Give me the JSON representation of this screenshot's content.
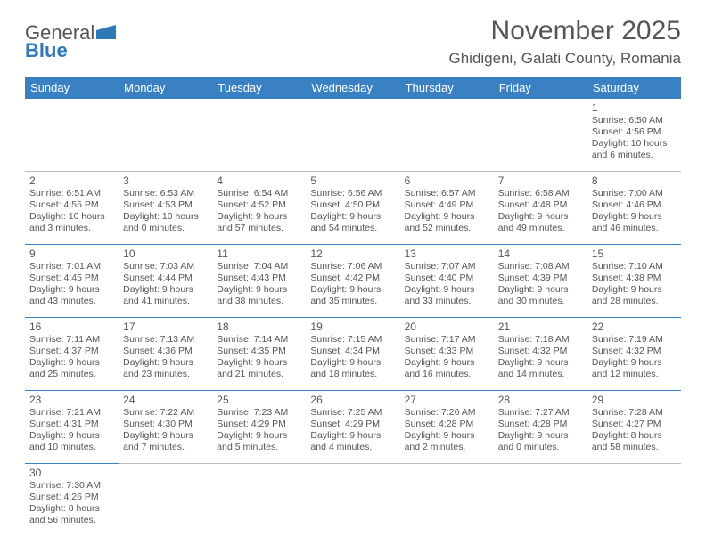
{
  "brand": {
    "part1": "General",
    "part2": "Blue"
  },
  "title": "November 2025",
  "location": "Ghidigeni, Galati County, Romania",
  "colors": {
    "header_bg": "#3a81c4",
    "header_text": "#ffffff",
    "text": "#555555",
    "rule": "#3a81c4",
    "background": "#ffffff"
  },
  "dayHeaders": [
    "Sunday",
    "Monday",
    "Tuesday",
    "Wednesday",
    "Thursday",
    "Friday",
    "Saturday"
  ],
  "weeks": [
    [
      null,
      null,
      null,
      null,
      null,
      null,
      {
        "n": "1",
        "sr": "Sunrise: 6:50 AM",
        "ss": "Sunset: 4:56 PM",
        "d1": "Daylight: 10 hours",
        "d2": "and 6 minutes."
      }
    ],
    [
      {
        "n": "2",
        "sr": "Sunrise: 6:51 AM",
        "ss": "Sunset: 4:55 PM",
        "d1": "Daylight: 10 hours",
        "d2": "and 3 minutes."
      },
      {
        "n": "3",
        "sr": "Sunrise: 6:53 AM",
        "ss": "Sunset: 4:53 PM",
        "d1": "Daylight: 10 hours",
        "d2": "and 0 minutes."
      },
      {
        "n": "4",
        "sr": "Sunrise: 6:54 AM",
        "ss": "Sunset: 4:52 PM",
        "d1": "Daylight: 9 hours",
        "d2": "and 57 minutes."
      },
      {
        "n": "5",
        "sr": "Sunrise: 6:56 AM",
        "ss": "Sunset: 4:50 PM",
        "d1": "Daylight: 9 hours",
        "d2": "and 54 minutes."
      },
      {
        "n": "6",
        "sr": "Sunrise: 6:57 AM",
        "ss": "Sunset: 4:49 PM",
        "d1": "Daylight: 9 hours",
        "d2": "and 52 minutes."
      },
      {
        "n": "7",
        "sr": "Sunrise: 6:58 AM",
        "ss": "Sunset: 4:48 PM",
        "d1": "Daylight: 9 hours",
        "d2": "and 49 minutes."
      },
      {
        "n": "8",
        "sr": "Sunrise: 7:00 AM",
        "ss": "Sunset: 4:46 PM",
        "d1": "Daylight: 9 hours",
        "d2": "and 46 minutes."
      }
    ],
    [
      {
        "n": "9",
        "sr": "Sunrise: 7:01 AM",
        "ss": "Sunset: 4:45 PM",
        "d1": "Daylight: 9 hours",
        "d2": "and 43 minutes."
      },
      {
        "n": "10",
        "sr": "Sunrise: 7:03 AM",
        "ss": "Sunset: 4:44 PM",
        "d1": "Daylight: 9 hours",
        "d2": "and 41 minutes."
      },
      {
        "n": "11",
        "sr": "Sunrise: 7:04 AM",
        "ss": "Sunset: 4:43 PM",
        "d1": "Daylight: 9 hours",
        "d2": "and 38 minutes."
      },
      {
        "n": "12",
        "sr": "Sunrise: 7:06 AM",
        "ss": "Sunset: 4:42 PM",
        "d1": "Daylight: 9 hours",
        "d2": "and 35 minutes."
      },
      {
        "n": "13",
        "sr": "Sunrise: 7:07 AM",
        "ss": "Sunset: 4:40 PM",
        "d1": "Daylight: 9 hours",
        "d2": "and 33 minutes."
      },
      {
        "n": "14",
        "sr": "Sunrise: 7:08 AM",
        "ss": "Sunset: 4:39 PM",
        "d1": "Daylight: 9 hours",
        "d2": "and 30 minutes."
      },
      {
        "n": "15",
        "sr": "Sunrise: 7:10 AM",
        "ss": "Sunset: 4:38 PM",
        "d1": "Daylight: 9 hours",
        "d2": "and 28 minutes."
      }
    ],
    [
      {
        "n": "16",
        "sr": "Sunrise: 7:11 AM",
        "ss": "Sunset: 4:37 PM",
        "d1": "Daylight: 9 hours",
        "d2": "and 25 minutes."
      },
      {
        "n": "17",
        "sr": "Sunrise: 7:13 AM",
        "ss": "Sunset: 4:36 PM",
        "d1": "Daylight: 9 hours",
        "d2": "and 23 minutes."
      },
      {
        "n": "18",
        "sr": "Sunrise: 7:14 AM",
        "ss": "Sunset: 4:35 PM",
        "d1": "Daylight: 9 hours",
        "d2": "and 21 minutes."
      },
      {
        "n": "19",
        "sr": "Sunrise: 7:15 AM",
        "ss": "Sunset: 4:34 PM",
        "d1": "Daylight: 9 hours",
        "d2": "and 18 minutes."
      },
      {
        "n": "20",
        "sr": "Sunrise: 7:17 AM",
        "ss": "Sunset: 4:33 PM",
        "d1": "Daylight: 9 hours",
        "d2": "and 16 minutes."
      },
      {
        "n": "21",
        "sr": "Sunrise: 7:18 AM",
        "ss": "Sunset: 4:32 PM",
        "d1": "Daylight: 9 hours",
        "d2": "and 14 minutes."
      },
      {
        "n": "22",
        "sr": "Sunrise: 7:19 AM",
        "ss": "Sunset: 4:32 PM",
        "d1": "Daylight: 9 hours",
        "d2": "and 12 minutes."
      }
    ],
    [
      {
        "n": "23",
        "sr": "Sunrise: 7:21 AM",
        "ss": "Sunset: 4:31 PM",
        "d1": "Daylight: 9 hours",
        "d2": "and 10 minutes."
      },
      {
        "n": "24",
        "sr": "Sunrise: 7:22 AM",
        "ss": "Sunset: 4:30 PM",
        "d1": "Daylight: 9 hours",
        "d2": "and 7 minutes."
      },
      {
        "n": "25",
        "sr": "Sunrise: 7:23 AM",
        "ss": "Sunset: 4:29 PM",
        "d1": "Daylight: 9 hours",
        "d2": "and 5 minutes."
      },
      {
        "n": "26",
        "sr": "Sunrise: 7:25 AM",
        "ss": "Sunset: 4:29 PM",
        "d1": "Daylight: 9 hours",
        "d2": "and 4 minutes."
      },
      {
        "n": "27",
        "sr": "Sunrise: 7:26 AM",
        "ss": "Sunset: 4:28 PM",
        "d1": "Daylight: 9 hours",
        "d2": "and 2 minutes."
      },
      {
        "n": "28",
        "sr": "Sunrise: 7:27 AM",
        "ss": "Sunset: 4:28 PM",
        "d1": "Daylight: 9 hours",
        "d2": "and 0 minutes."
      },
      {
        "n": "29",
        "sr": "Sunrise: 7:28 AM",
        "ss": "Sunset: 4:27 PM",
        "d1": "Daylight: 8 hours",
        "d2": "and 58 minutes."
      }
    ],
    [
      {
        "n": "30",
        "sr": "Sunrise: 7:30 AM",
        "ss": "Sunset: 4:26 PM",
        "d1": "Daylight: 8 hours",
        "d2": "and 56 minutes."
      },
      null,
      null,
      null,
      null,
      null,
      null
    ]
  ]
}
